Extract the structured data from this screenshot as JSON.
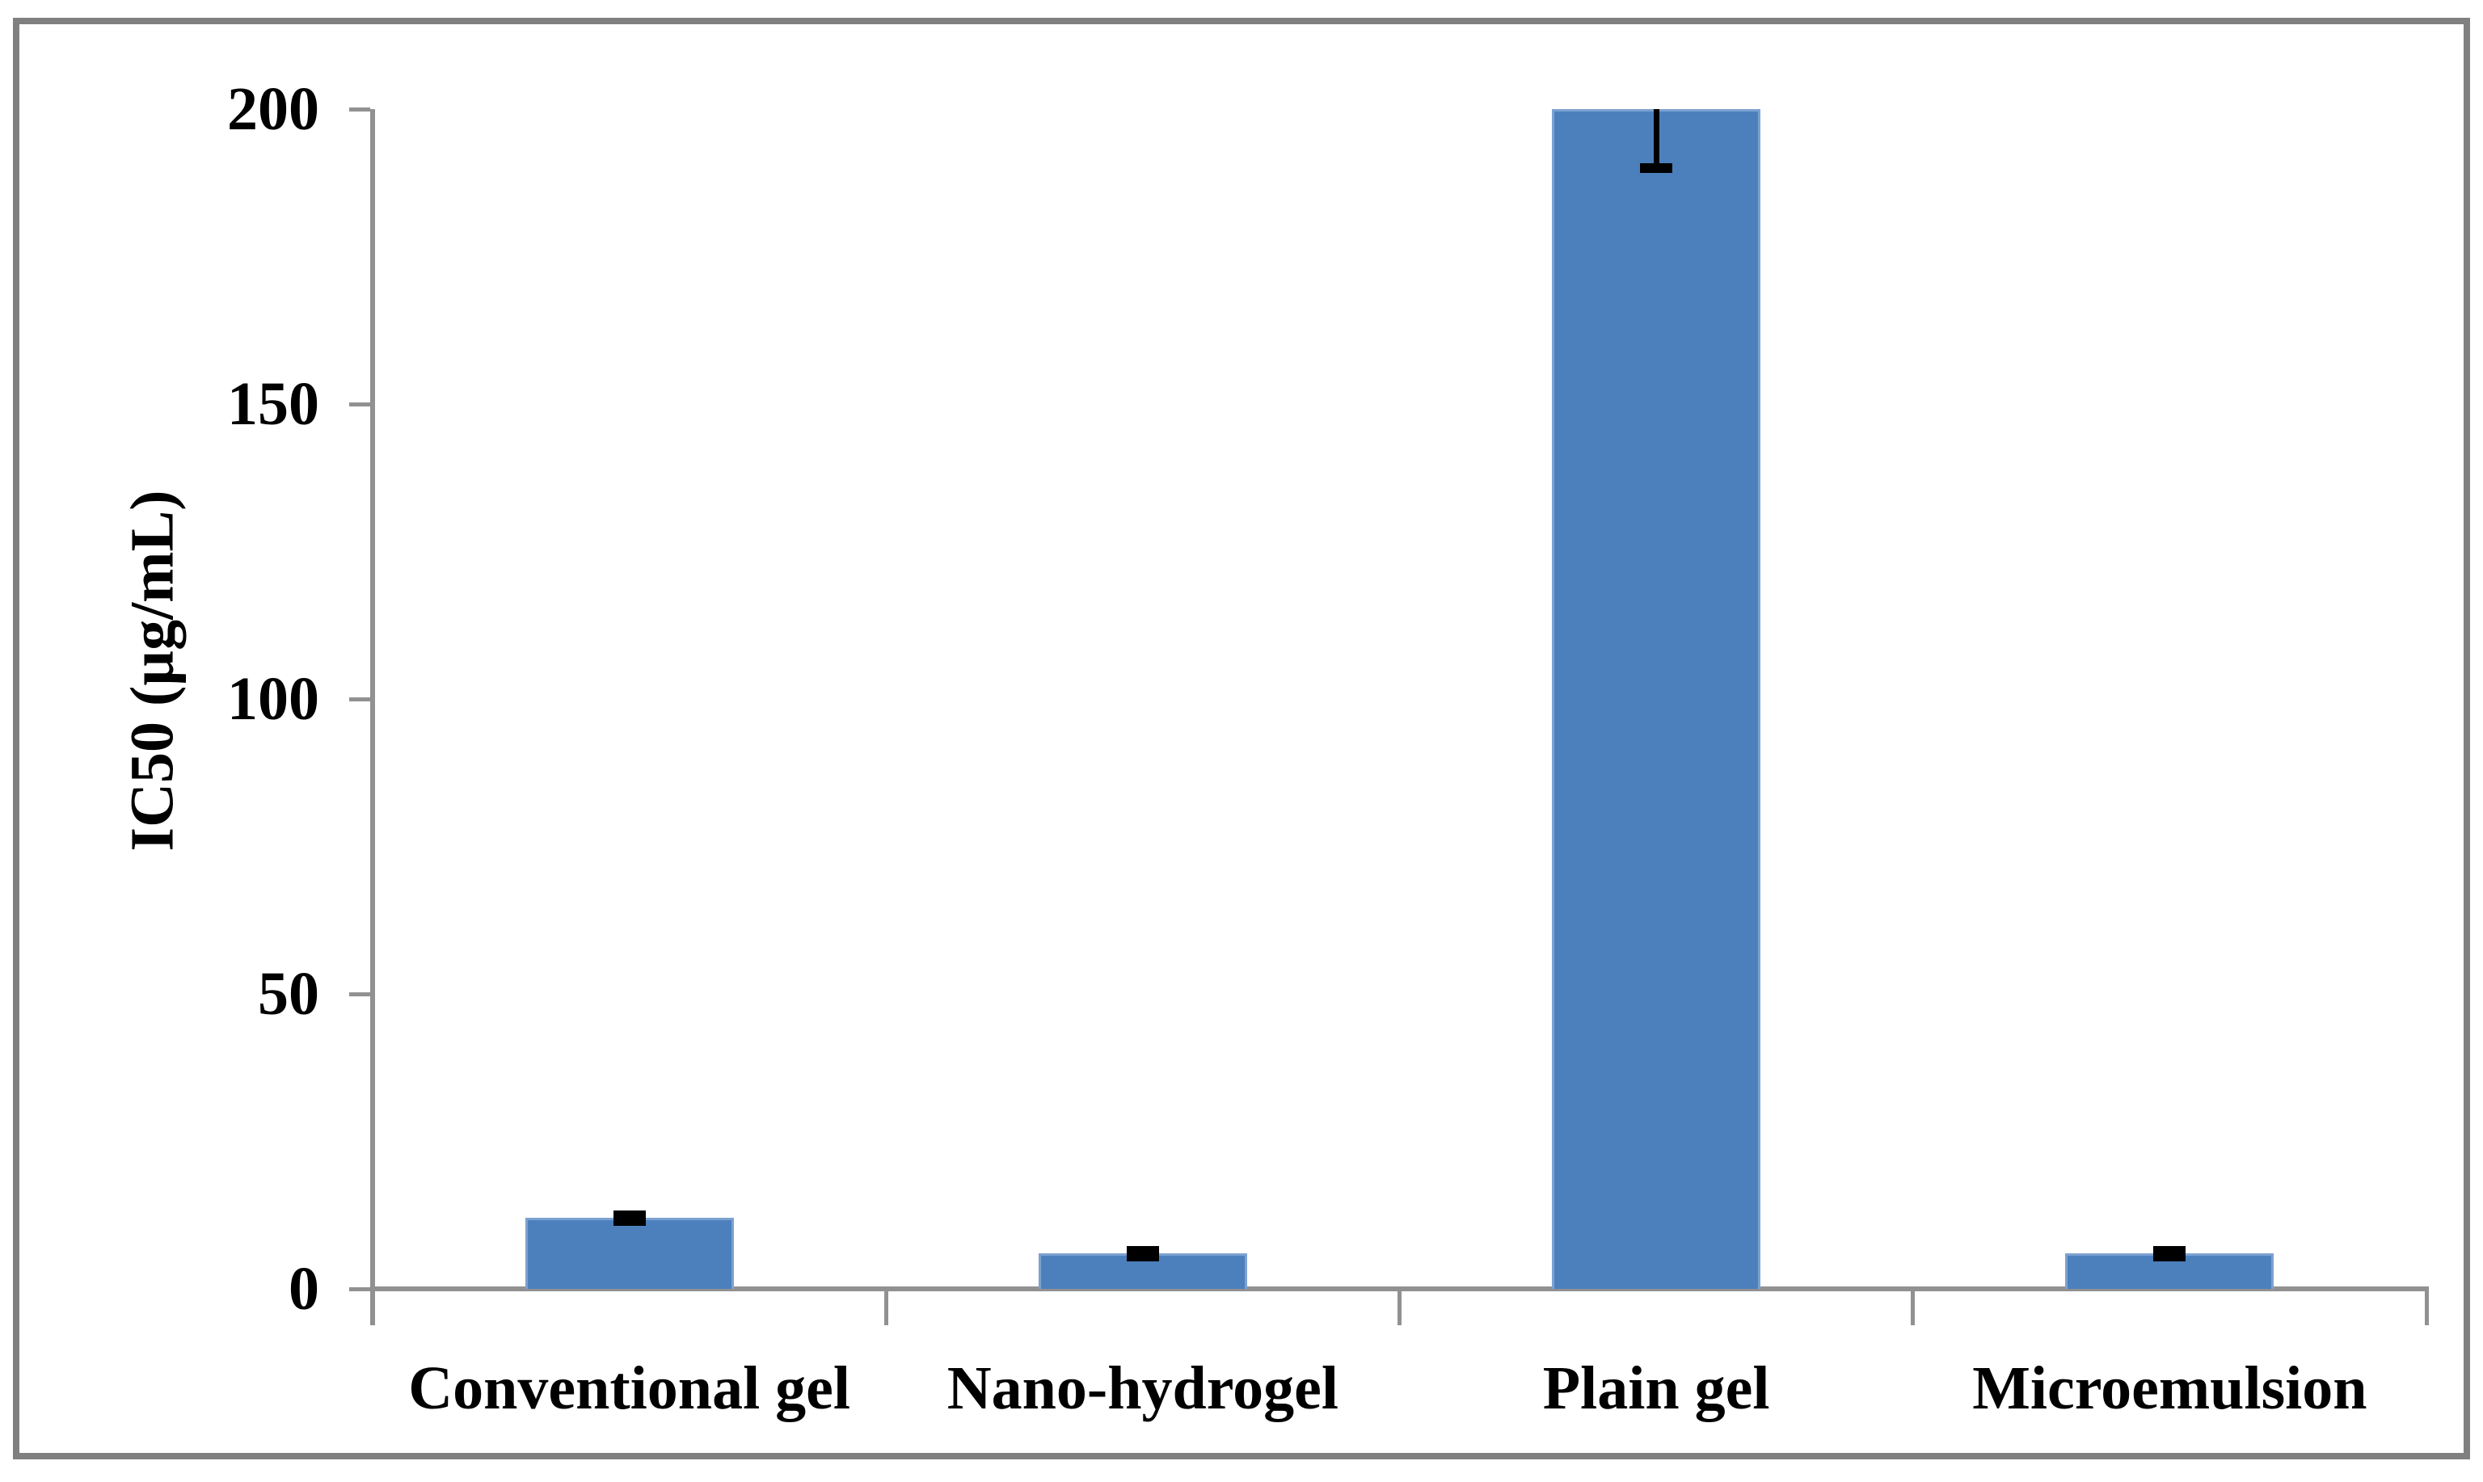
{
  "chart_data": {
    "type": "bar",
    "title": "",
    "categories": [
      "Conventional gel",
      "Nano-hydrogel",
      "Plain gel",
      "Microemulsion"
    ],
    "values": [
      12,
      6,
      200,
      6
    ],
    "errors": [
      0.5,
      0.5,
      10,
      0.5
    ],
    "xlabel": "",
    "ylabel": "IC50 (µg/mL)",
    "ylim": [
      0,
      200
    ],
    "yticks": [
      0,
      50,
      100,
      150,
      200
    ],
    "ytick_labels": [
      "0",
      "50",
      "100",
      "150",
      "200"
    ],
    "grid": false,
    "legend_position": "none",
    "bar_color": "#4C80BD",
    "bar_edge_color": "#7CA2D0",
    "error_bar_color": "#000000",
    "axis_color": "#919191",
    "frame_color": "#808080",
    "text_color": "#000000",
    "background_color": "#FFFFFF"
  }
}
